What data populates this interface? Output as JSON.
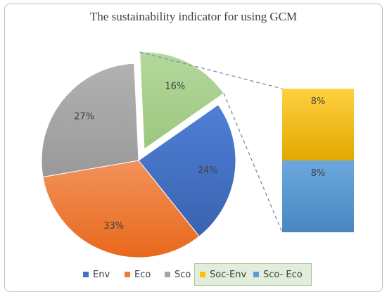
{
  "chart_data": {
    "type": "pie",
    "title": "The sustainability indicator for using GCM",
    "slices": [
      {
        "name": "Env",
        "value": 24,
        "label": "24%",
        "color": "#4472c4"
      },
      {
        "name": "Eco",
        "value": 33,
        "label": "33%",
        "color": "#ed7d31"
      },
      {
        "name": "Sco",
        "value": 27,
        "label": "27%",
        "color": "#a5a5a5"
      },
      {
        "name": "Soc-Env + Sco- Eco",
        "value": 16,
        "label": "16%",
        "color": "#a9d18e",
        "exploded": true
      }
    ],
    "breakout": [
      {
        "name": "Soc-Env",
        "value": 8,
        "label": "8%",
        "color": "#ffc000"
      },
      {
        "name": "Sco- Eco",
        "value": 8,
        "label": "8%",
        "color": "#5b9bd5"
      }
    ],
    "legend": {
      "position": "bottom",
      "items": [
        {
          "label": "Env",
          "color": "#4472c4"
        },
        {
          "label": "Eco",
          "color": "#ed7d31"
        },
        {
          "label": "Sco",
          "color": "#a5a5a5"
        },
        {
          "label": "Soc-Env",
          "color": "#ffc000"
        },
        {
          "label": "Sco- Eco",
          "color": "#5b9bd5"
        }
      ]
    }
  }
}
